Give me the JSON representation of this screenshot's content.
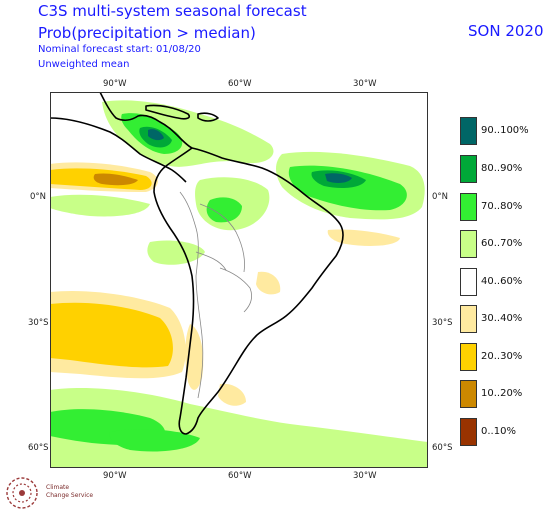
{
  "header": {
    "title": "C3S multi-system seasonal forecast",
    "subtitle": "Prob(precipitation > median)",
    "start_line": "Nominal forecast start: 01/08/20",
    "weighting": "Unweighted mean",
    "season": "SON 2020"
  },
  "axes": {
    "top_labels": [
      "90°W",
      "60°W",
      "30°W"
    ],
    "bottom_labels": [
      "90°W",
      "60°W",
      "30°W"
    ],
    "left_labels": [
      "0°N",
      "30°S",
      "60°S"
    ],
    "right_labels": [
      "0°N",
      "30°S",
      "60°S"
    ]
  },
  "legend": [
    {
      "label": "90..100%",
      "color": "#006666"
    },
    {
      "label": "80..90%",
      "color": "#00a838"
    },
    {
      "label": "70..80%",
      "color": "#33ee33"
    },
    {
      "label": "60..70%",
      "color": "#c8ff88"
    },
    {
      "label": "40..60%",
      "color": "#ffffff"
    },
    {
      "label": "30..40%",
      "color": "#ffeaa0"
    },
    {
      "label": "20..30%",
      "color": "#ffd100"
    },
    {
      "label": "10..20%",
      "color": "#cc8800"
    },
    {
      "label": "0..10%",
      "color": "#993300"
    }
  ],
  "logo": {
    "line1": "Climate",
    "line2": "Change Service"
  }
}
